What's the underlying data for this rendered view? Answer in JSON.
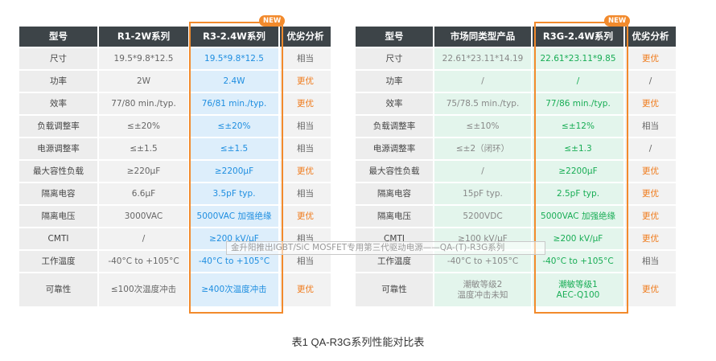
{
  "badge": "NEW",
  "left_table": {
    "headers": [
      "型号",
      "R1-2W系列",
      "R3-2.4W系列",
      "优劣分析"
    ],
    "rows": [
      {
        "label": "尺寸",
        "old": "19.5*9.8*12.5",
        "new": "19.5*9.8*12.5",
        "analysis": "相当",
        "status": "eq"
      },
      {
        "label": "功率",
        "old": "2W",
        "new": "2.4W",
        "analysis": "更优",
        "status": "up"
      },
      {
        "label": "效率",
        "old": "77/80 min./typ.",
        "new": "76/81 min./typ.",
        "analysis": "更优",
        "status": "up"
      },
      {
        "label": "负载调整率",
        "old": "≤±20%",
        "new": "≤±20%",
        "analysis": "相当",
        "status": "eq"
      },
      {
        "label": "电源调整率",
        "old": "≤±1.5",
        "new": "≤±1.5",
        "analysis": "相当",
        "status": "eq"
      },
      {
        "label": "最大容性负载",
        "old": "≥220μF",
        "new": "≥2200μF",
        "analysis": "更优",
        "status": "up"
      },
      {
        "label": "隔离电容",
        "old": "6.6μF",
        "new": "3.5pF typ.",
        "analysis": "相当",
        "status": "eq"
      },
      {
        "label": "隔离电压",
        "old": "3000VAC",
        "new": "5000VAC 加强绝缘",
        "analysis": "更优",
        "status": "up"
      },
      {
        "label": "CMTI",
        "old": "/",
        "new": "≥200 kV/μF",
        "analysis": "相当",
        "status": "eq"
      },
      {
        "label": "工作温度",
        "old": "-40°C to +105°C",
        "new": "-40°C to +105°C",
        "analysis": "相当",
        "status": "eq"
      },
      {
        "label": "可靠性",
        "old": "≤100次温度冲击",
        "new": "≥400次温度冲击",
        "analysis": "更优",
        "status": "up"
      }
    ]
  },
  "right_table": {
    "headers": [
      "型号",
      "市场同类型产品",
      "R3G-2.4W系列",
      "优劣分析"
    ],
    "rows": [
      {
        "label": "尺寸",
        "old": "22.61*23.11*14.19",
        "new": "22.61*23.11*9.85",
        "analysis": "更优",
        "status": "up"
      },
      {
        "label": "功率",
        "old": "/",
        "new": "/",
        "analysis": "/",
        "status": "eq"
      },
      {
        "label": "效率",
        "old": "75/78.5 min./typ.",
        "new": "77/86 min./typ.",
        "analysis": "更优",
        "status": "up"
      },
      {
        "label": "负载调整率",
        "old": "≤±10%",
        "new": "≤±12%",
        "analysis": "相当",
        "status": "eq"
      },
      {
        "label": "电源调整率",
        "old": "≤±2（闭环）",
        "new": "≤±1.3",
        "analysis": "/",
        "status": "eq"
      },
      {
        "label": "最大容性负载",
        "old": "/",
        "new": "≥2200μF",
        "analysis": "更优",
        "status": "up"
      },
      {
        "label": "隔离电容",
        "old": "15pF typ.",
        "new": "2.5pF typ.",
        "analysis": "更优",
        "status": "up"
      },
      {
        "label": "隔离电压",
        "old": "5200VDC",
        "new": "5000VAC 加强绝缘",
        "analysis": "更优",
        "status": "up"
      },
      {
        "label": "CMTI",
        "old": "≥100 kV/μF",
        "new": "≥200 kV/μF",
        "analysis": "更优",
        "status": "up"
      },
      {
        "label": "工作温度",
        "old": "-40°C to +105°C",
        "new": "-40°C to +105°C",
        "analysis": "相当",
        "status": "eq"
      },
      {
        "label": "可靠性",
        "old": "潮敏等级2\n温度冲击未知",
        "new": "潮敏等级1\nAEC-Q100",
        "analysis": "更优",
        "status": "up"
      }
    ]
  },
  "watermark": "金升阳推出IGBT/SiC MOSFET专用第三代驱动电源——QA-(T)-R3G系列",
  "caption": "表1 QA-R3G系列性能对比表"
}
